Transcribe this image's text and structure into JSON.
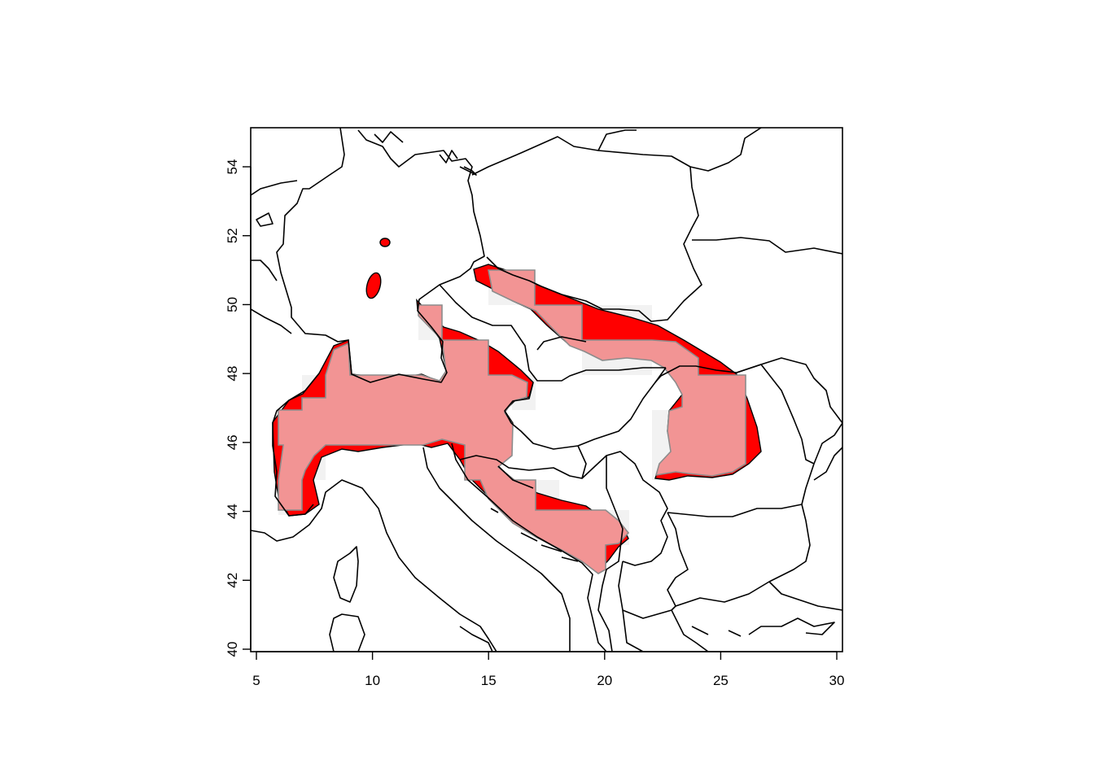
{
  "map": {
    "x_axis": {
      "ticks": [
        5,
        10,
        15,
        20,
        25,
        30
      ],
      "range": [
        5,
        30
      ]
    },
    "y_axis": {
      "ticks": [
        40,
        42,
        44,
        46,
        48,
        50,
        52,
        54
      ],
      "range": [
        40,
        55
      ]
    },
    "colors": {
      "range_outline_fill": "#ff0000",
      "range_modeled_fill": "#f29494",
      "grid_cell_fill": "#f2f2f2",
      "border_color": "#000000"
    }
  }
}
